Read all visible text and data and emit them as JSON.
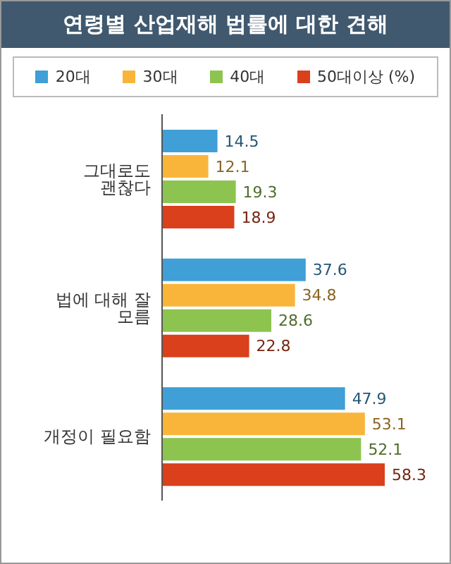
{
  "chart_data": {
    "type": "bar",
    "orientation": "horizontal",
    "title": "연령별 산업재해 법률에 대한 견해",
    "categories": [
      "그대로도 괜찮다",
      "법에 대해 잘 모름",
      "개정이 필요함"
    ],
    "series": [
      {
        "name": "20대",
        "color": "#3f9fd6",
        "values": [
          14.5,
          37.6,
          47.9
        ]
      },
      {
        "name": "30대",
        "color": "#f9b53a",
        "values": [
          12.1,
          34.8,
          53.1
        ]
      },
      {
        "name": "40대",
        "color": "#8dc44f",
        "values": [
          19.3,
          28.6,
          52.1
        ]
      },
      {
        "name": "50대이상 (%)",
        "color": "#d9401b",
        "values": [
          18.9,
          22.8,
          58.3
        ]
      }
    ],
    "data_labels": true,
    "legend": "top",
    "grid": false
  }
}
